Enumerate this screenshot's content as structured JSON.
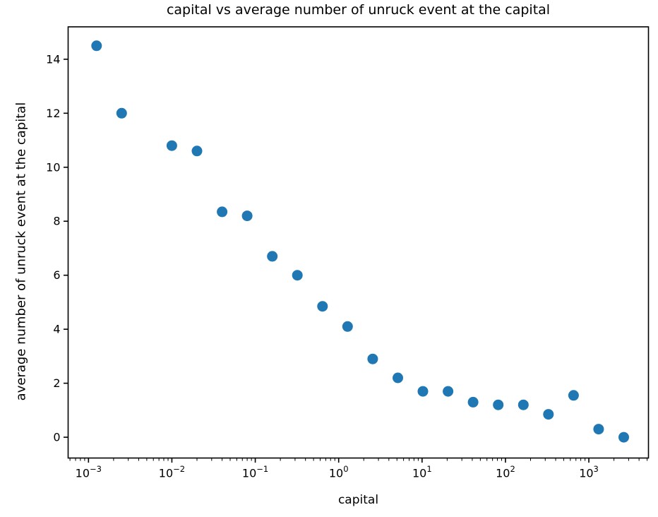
{
  "chart_data": {
    "type": "scatter",
    "title": "capital vs average number of unruck event at the capital",
    "xlabel": "capital",
    "ylabel": "average number of unruck event at the capital",
    "x_scale": "log",
    "x": [
      0.00125,
      0.0025,
      0.01,
      0.02,
      0.04,
      0.08,
      0.16,
      0.32,
      0.64,
      1.28,
      2.56,
      5.12,
      10.24,
      20.48,
      40.96,
      81.92,
      163.84,
      327.68,
      655.36,
      1310.72,
      2621.44
    ],
    "y": [
      14.5,
      12.0,
      10.8,
      10.6,
      8.35,
      8.2,
      6.7,
      6.0,
      4.85,
      4.1,
      2.9,
      2.2,
      1.7,
      1.7,
      1.3,
      1.2,
      1.2,
      0.85,
      1.55,
      0.3,
      0.0
    ],
    "x_tick_exponents": [
      -3,
      -2,
      -1,
      0,
      1,
      2,
      3
    ],
    "x_tick_base": "10",
    "y_ticks": [
      0,
      2,
      4,
      6,
      8,
      10,
      12,
      14
    ],
    "xlim_log10": [
      -3.244,
      3.715
    ],
    "ylim": [
      -0.77,
      15.2
    ],
    "grid": false,
    "legend": null,
    "marker_color": "#1f77b4",
    "axis_color": "#000000",
    "background": "#ffffff"
  }
}
